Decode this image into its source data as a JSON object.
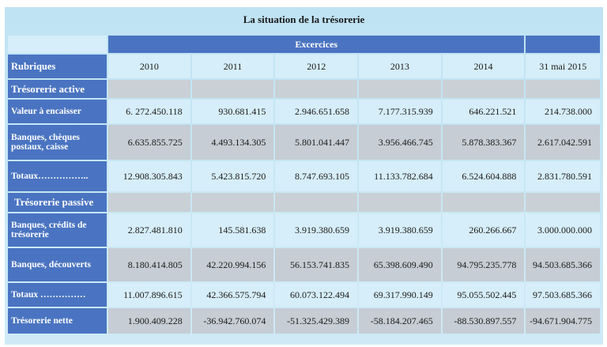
{
  "title": "La situation de la trésorerie",
  "header_group": "Excercices",
  "rubriques_label": "Rubriques",
  "years": [
    "2010",
    "2011",
    "2012",
    "2013",
    "2014",
    "31 mai 2015"
  ],
  "sections": {
    "active": "Trésorerie active",
    "passive": "Trésorerie passive"
  },
  "rows": [
    {
      "label": "Valeur à encaisser",
      "values": [
        "6. 272.450.118",
        "930.681.415",
        "2.946.651.658",
        "7.177.315.939",
        "646.221.521",
        "214.738.000"
      ]
    },
    {
      "label": "Banques, chèques postaux, caisse",
      "values": [
        "6.635.855.725",
        "4.493.134.305",
        "5.801.041.447",
        "3.956.466.745",
        "5.878.383.367",
        "2.617.042.591"
      ]
    },
    {
      "label": "Totaux……………..",
      "values": [
        "12.908.305.843",
        "5.423.815.720",
        "8.747.693.105",
        "11.133.782.684",
        "6.524.604.888",
        "2.831.780.591"
      ]
    },
    {
      "label": "Banques, crédits de trésorerie",
      "values": [
        "2.827.481.810",
        "145.581.638",
        "3.919.380.659",
        "3.919.380.659",
        "260.266.667",
        "3.000.000.000"
      ]
    },
    {
      "label": "Banques, découverts",
      "values": [
        "8.180.414.805",
        "42.220.994.156",
        "56.153.741.835",
        "65.398.609.490",
        "94.795.235.778",
        "94.503.685.366"
      ]
    },
    {
      "label": "Totaux ……………",
      "values": [
        "11.007.896.615",
        "42.366.575.794",
        "60.073.122.494",
        "69.317.990.149",
        "95.055.502.445",
        "97.503.685.366"
      ]
    },
    {
      "label": "Trésorerie nette",
      "values": [
        "1.900.409.228",
        "-36.942.760.074",
        "-51.325.429.389",
        "-58.184.207.465",
        "-88.530.897.557",
        "-94.671.904.775"
      ]
    }
  ]
}
